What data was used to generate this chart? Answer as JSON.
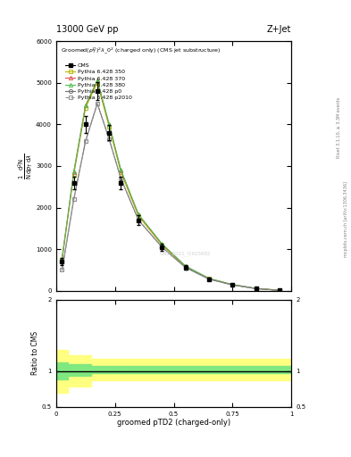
{
  "title_top": "13000 GeV pp",
  "title_right": "Z+Jet",
  "xlabel": "groomed pTD2 (charged-only)",
  "ylabel_ratio": "Ratio to CMS",
  "right_label": "mcplots.cern.ch [arXiv:1306.3436]",
  "right_label2": "Rivet 3.1.10, ≥ 3.3M events",
  "watermark": "CMS_2021_I1925682",
  "x_data": [
    0.025,
    0.075,
    0.125,
    0.175,
    0.225,
    0.275,
    0.35,
    0.45,
    0.55,
    0.65,
    0.75,
    0.85,
    0.95
  ],
  "cms_y": [
    700,
    2600,
    4000,
    4800,
    3800,
    2600,
    1700,
    1050,
    560,
    280,
    140,
    50,
    10
  ],
  "cms_yerr": [
    80,
    150,
    200,
    220,
    180,
    150,
    120,
    80,
    50,
    30,
    20,
    10,
    5
  ],
  "p350_y": [
    750,
    2800,
    4400,
    5000,
    3950,
    2850,
    1800,
    1100,
    580,
    290,
    145,
    55,
    12
  ],
  "p370_y": [
    760,
    2850,
    4450,
    5050,
    4000,
    2900,
    1830,
    1120,
    590,
    295,
    148,
    57,
    12
  ],
  "p380_y": [
    770,
    2860,
    4460,
    5060,
    4010,
    2910,
    1840,
    1130,
    595,
    298,
    150,
    58,
    13
  ],
  "p0_y": [
    500,
    2200,
    3600,
    4500,
    3650,
    2700,
    1700,
    1050,
    560,
    280,
    140,
    52,
    10
  ],
  "p2010_y": [
    500,
    2200,
    3600,
    4500,
    3650,
    2700,
    1700,
    1050,
    560,
    280,
    140,
    52,
    10
  ],
  "color_350": "#b8b800",
  "color_370": "#e05050",
  "color_380": "#50c050",
  "color_p0": "#707070",
  "color_p2010": "#909090",
  "ratio_bins": [
    0.0,
    0.05,
    0.15,
    0.2,
    0.3,
    1.0
  ],
  "ratio_green_lo": [
    0.88,
    0.93,
    0.97,
    0.97,
    0.97
  ],
  "ratio_green_hi": [
    1.12,
    1.1,
    1.07,
    1.07,
    1.07
  ],
  "ratio_yellow_lo": [
    0.7,
    0.78,
    0.87,
    0.87,
    0.87
  ],
  "ratio_yellow_hi": [
    1.3,
    1.22,
    1.17,
    1.17,
    1.17
  ],
  "ylim_main": [
    0,
    6000
  ],
  "ylim_ratio": [
    0.5,
    2.0
  ],
  "yticks_main": [
    0,
    1000,
    2000,
    3000,
    4000,
    5000,
    6000
  ],
  "yticks_ratio": [
    0.5,
    1.0,
    2.0
  ]
}
